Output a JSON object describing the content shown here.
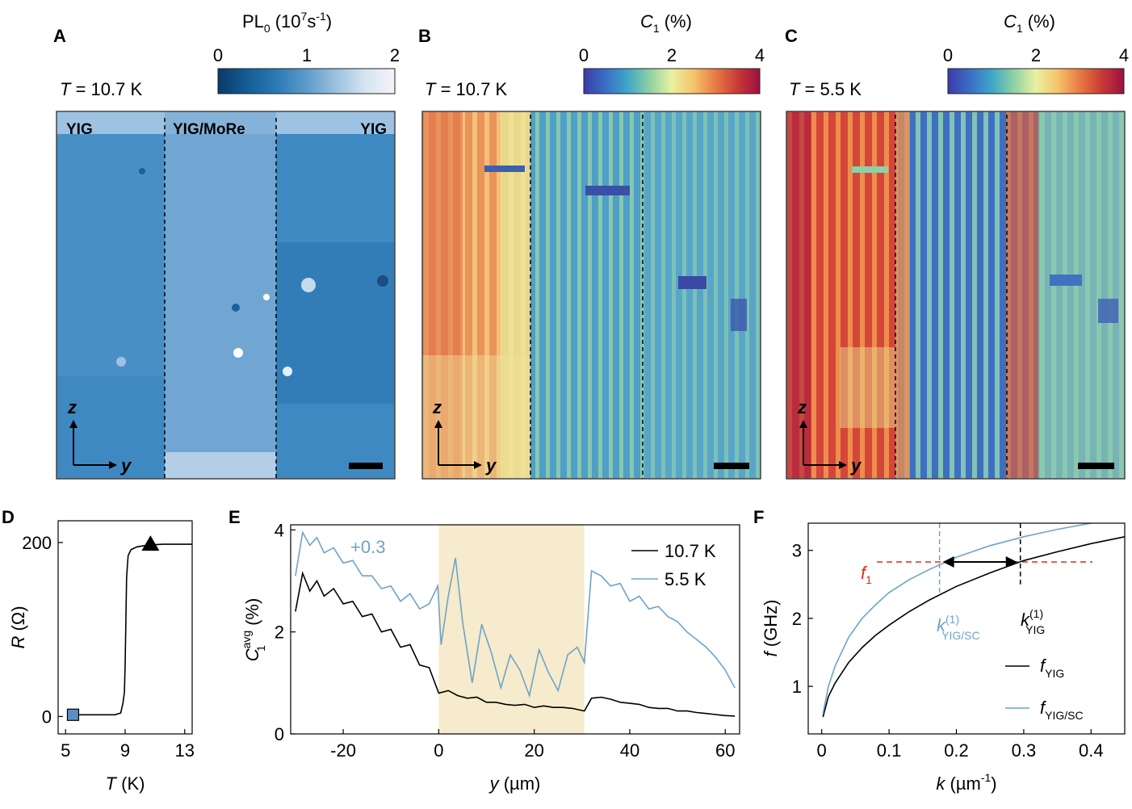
{
  "colors": {
    "black": "#000000",
    "blue_curve": "#6fa3c8",
    "shade": "#f6ebcc",
    "red_dashed": "#e3281f",
    "marker_square": "#5b8fbf"
  },
  "colormaps": {
    "pl_blues": [
      "#0a3a6b",
      "#155e95",
      "#2b7ab5",
      "#5c9bc9",
      "#9cc2df",
      "#d4e4f1",
      "#f7f3f8"
    ],
    "parula_like": [
      "#3b3ca8",
      "#3a6ec6",
      "#3ea7c7",
      "#8fd1a5",
      "#e9f1a1",
      "#f6c36a",
      "#e77a43",
      "#c83a36",
      "#9b1040"
    ]
  },
  "maps": {
    "A": {
      "letter": "A",
      "temperature_prefix": "T",
      "temperature_value": " = 10.7 K",
      "colorbar_label_main": "PL",
      "colorbar_label_sub": "0",
      "colorbar_label_unit": "(10",
      "colorbar_label_exp": "7",
      "colorbar_label_unit2": "s",
      "colorbar_label_exp2": "-1",
      "colorbar_label_close": ")",
      "colorbar_ticks": [
        "0",
        "1",
        "2"
      ],
      "regions": [
        "YIG",
        "YIG/MoRe",
        "YIG"
      ],
      "axis_z": "z",
      "axis_y": "y"
    },
    "B": {
      "letter": "B",
      "temperature_prefix": "T",
      "temperature_value": " = 10.7 K",
      "colorbar_label_main": "C",
      "colorbar_label_sub": "1",
      "colorbar_label_unit": "(%)",
      "colorbar_ticks": [
        "0",
        "2",
        "4"
      ],
      "axis_z": "z",
      "axis_y": "y"
    },
    "C": {
      "letter": "C",
      "temperature_prefix": "T",
      "temperature_value": " = 5.5 K",
      "colorbar_label_main": "C",
      "colorbar_label_sub": "1",
      "colorbar_label_unit": "(%)",
      "colorbar_ticks": [
        "0",
        "2",
        "4"
      ],
      "axis_z": "z",
      "axis_y": "y"
    }
  },
  "chart_data": [
    {
      "id": "D",
      "letter": "D",
      "type": "line",
      "xlabel_italic": "T",
      "xlabel_unit": " (K)",
      "ylabel_italic": "R",
      "ylabel_unit": " (Ω)",
      "xlim": [
        4.5,
        13.5
      ],
      "ylim": [
        -20,
        225
      ],
      "xticks": [
        5,
        9,
        13
      ],
      "yticks": [
        0,
        200
      ],
      "series": [
        {
          "x": [
            5.5,
            6.5,
            7.5,
            8.3,
            8.7,
            8.85,
            8.95,
            9.0,
            9.05,
            9.1,
            9.2,
            9.4,
            9.8,
            10.5,
            11.5,
            12.5,
            13.5
          ],
          "y": [
            2,
            2,
            2,
            2,
            4,
            15,
            28,
            60,
            110,
            160,
            185,
            192,
            195,
            197,
            198,
            198,
            198
          ]
        }
      ],
      "markers": [
        {
          "shape": "square",
          "x": 5.5,
          "y": 2
        },
        {
          "shape": "triangle",
          "x": 10.7,
          "y": 198
        }
      ]
    },
    {
      "id": "E",
      "letter": "E",
      "type": "line",
      "xlabel_italic": "y",
      "xlabel_unit": " (µm)",
      "ylabel_main": "C",
      "ylabel_sup": "avg",
      "ylabel_sub": "1",
      "ylabel_unit": " (%)",
      "xlim": [
        -31,
        63
      ],
      "ylim": [
        0,
        4.1
      ],
      "xticks": [
        -20,
        0,
        20,
        40,
        60
      ],
      "yticks": [
        0,
        2,
        4
      ],
      "shaded_region": [
        0,
        30.5
      ],
      "annotation": "+0.3",
      "series": [
        {
          "name": "10.7 K",
          "color": "#000000",
          "x": [
            -30,
            -28.5,
            -27,
            -25.5,
            -24,
            -22,
            -20,
            -18,
            -16,
            -14,
            -12,
            -10,
            -8,
            -6,
            -4,
            -2,
            0,
            2,
            4,
            6,
            8,
            10,
            12,
            14,
            16,
            18,
            20,
            22,
            24,
            26,
            28,
            30.5,
            32,
            34,
            36,
            38,
            40,
            42,
            44,
            46,
            48,
            50,
            52,
            54,
            56,
            58,
            60,
            62
          ],
          "y": [
            2.4,
            3.15,
            2.8,
            3.0,
            2.7,
            2.85,
            2.55,
            2.6,
            2.3,
            2.35,
            2.0,
            2.05,
            1.7,
            1.75,
            1.35,
            1.3,
            0.8,
            0.85,
            0.75,
            0.7,
            0.72,
            0.62,
            0.62,
            0.58,
            0.56,
            0.58,
            0.52,
            0.55,
            0.52,
            0.52,
            0.5,
            0.45,
            0.7,
            0.72,
            0.68,
            0.62,
            0.6,
            0.58,
            0.52,
            0.5,
            0.5,
            0.45,
            0.45,
            0.42,
            0.4,
            0.38,
            0.36,
            0.35
          ]
        },
        {
          "name": "5.5 K",
          "color": "#6fa3c8",
          "x": [
            -30,
            -28.5,
            -27,
            -25.5,
            -24,
            -22,
            -20,
            -18,
            -16,
            -14,
            -12,
            -10,
            -8,
            -6,
            -4,
            -2,
            -0.2,
            0.5,
            2,
            3.5,
            5,
            7,
            9,
            11,
            13,
            15,
            17,
            19,
            21,
            23,
            25,
            27,
            29,
            30.5,
            32,
            34,
            36,
            38,
            40,
            42,
            44,
            46,
            48,
            50,
            52,
            54,
            56,
            58,
            60,
            62
          ],
          "y": [
            3.1,
            3.95,
            3.7,
            3.85,
            3.55,
            3.65,
            3.35,
            3.4,
            3.1,
            3.1,
            2.85,
            2.9,
            2.6,
            2.75,
            2.45,
            2.55,
            2.9,
            1.75,
            2.7,
            3.45,
            2.2,
            1.0,
            2.15,
            1.6,
            0.9,
            1.55,
            1.25,
            0.75,
            1.65,
            1.2,
            0.85,
            1.55,
            1.7,
            1.4,
            3.2,
            3.1,
            2.9,
            2.95,
            2.6,
            2.7,
            2.45,
            2.5,
            2.3,
            2.2,
            2.0,
            1.85,
            1.7,
            1.5,
            1.25,
            0.9
          ]
        }
      ]
    },
    {
      "id": "F",
      "letter": "F",
      "type": "line",
      "xlabel_italic": "k",
      "xlabel_unit": " (µm",
      "xlabel_sup": "-1",
      "xlabel_close": ")",
      "ylabel_italic": "f",
      "ylabel_unit": " (GHz)",
      "xlim": [
        -0.02,
        0.45
      ],
      "ylim": [
        0.3,
        3.4
      ],
      "xticks": [
        0,
        0.1,
        0.2,
        0.3,
        0.4
      ],
      "xtick_labels": [
        "0",
        "0.1",
        "0.2",
        "0.3",
        "0.4"
      ],
      "yticks": [
        1,
        2,
        3
      ],
      "f1_value": 2.83,
      "f1_label": "f",
      "f1_sub": "1",
      "k_yig_sc": 0.175,
      "k_yig": 0.295,
      "k_yig_sc_label": "k",
      "k_yig_sc_sup": "(1)",
      "k_yig_sc_sub": "YIG/SC",
      "k_yig_label": "k",
      "k_yig_sup": "(1)",
      "k_yig_sub": "YIG",
      "series": [
        {
          "name_main": "f",
          "name_sub": "YIG",
          "color": "#000000",
          "x": [
            0.002,
            0.01,
            0.02,
            0.04,
            0.06,
            0.08,
            0.1,
            0.13,
            0.16,
            0.2,
            0.25,
            0.3,
            0.35,
            0.4,
            0.45
          ],
          "y": [
            0.55,
            0.85,
            1.05,
            1.35,
            1.57,
            1.75,
            1.9,
            2.1,
            2.27,
            2.47,
            2.67,
            2.85,
            2.98,
            3.1,
            3.2
          ]
        },
        {
          "name_main": "f",
          "name_sub": "YIG/SC",
          "color": "#6fa3c8",
          "x": [
            0.002,
            0.01,
            0.02,
            0.04,
            0.06,
            0.08,
            0.1,
            0.13,
            0.16,
            0.2,
            0.25,
            0.3,
            0.35,
            0.4
          ],
          "y": [
            0.6,
            1.0,
            1.3,
            1.72,
            2.0,
            2.2,
            2.38,
            2.57,
            2.72,
            2.9,
            3.07,
            3.2,
            3.31,
            3.4
          ]
        }
      ]
    }
  ]
}
